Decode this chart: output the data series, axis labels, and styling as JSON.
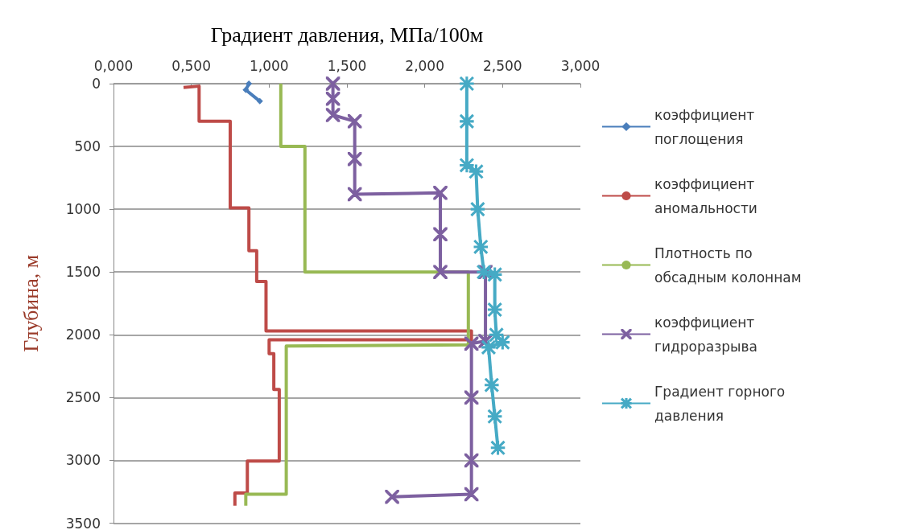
{
  "chart_data": {
    "type": "line",
    "xlabel": "Градиент давления, МПа/100м",
    "ylabel": "Глубина, м",
    "xlim": [
      0,
      3
    ],
    "xticks": [
      {
        "value": 0,
        "label": "0,000"
      },
      {
        "value": 0.5,
        "label": "0,500"
      },
      {
        "value": 1,
        "label": "1,000"
      },
      {
        "value": 1.5,
        "label": "1,500"
      },
      {
        "value": 2,
        "label": "2,000"
      },
      {
        "value": 2.5,
        "label": "2,500"
      },
      {
        "value": 3,
        "label": "3,000"
      }
    ],
    "ylim": [
      3500,
      0
    ],
    "yticks": [
      0,
      500,
      1000,
      1500,
      2000,
      2500,
      3000,
      3500
    ],
    "grid": "y",
    "legend": "right",
    "series": [
      {
        "name": "коэффициент поглощения",
        "color": "#4a7ebb",
        "marker": "diamond",
        "x": [
          0.87,
          0.85,
          0.94
        ],
        "values": [
          0,
          50,
          140
        ]
      },
      {
        "name": "коэффициент аномальности",
        "color": "#be4b48",
        "marker": "none",
        "x": [
          0.45,
          0.55,
          0.55,
          0.75,
          0.75,
          0.87,
          0.87,
          0.92,
          0.92,
          0.98,
          0.98,
          2.3,
          2.3,
          1.0,
          1.0,
          1.03,
          1.03,
          1.065,
          1.065,
          0.86,
          0.86,
          0.78,
          0.78
        ],
        "values": [
          30,
          20,
          300,
          300,
          990,
          990,
          1330,
          1330,
          1575,
          1575,
          1970,
          1970,
          2040,
          2040,
          2150,
          2150,
          2435,
          2435,
          3005,
          3005,
          3260,
          3260,
          3360
        ]
      },
      {
        "name": "Плотность по обсадным колоннам",
        "color": "#98b954",
        "marker": "none",
        "x": [
          1.075,
          1.075,
          1.23,
          1.23,
          2.28,
          2.28,
          1.11,
          1.11,
          0.85,
          0.85
        ],
        "values": [
          0,
          500,
          500,
          1500,
          1500,
          2080,
          2090,
          3270,
          3270,
          3360
        ]
      },
      {
        "name": "коэффициент гидроразрыва",
        "color": "#7d60a0",
        "marker": "cross",
        "x": [
          1.41,
          1.41,
          1.41,
          1.55,
          1.55,
          1.55,
          2.1,
          2.1,
          2.1,
          2.39,
          2.39,
          2.3,
          2.3,
          2.3,
          2.3,
          1.79
        ],
        "values": [
          0,
          120,
          250,
          300,
          600,
          880,
          870,
          1200,
          1500,
          1500,
          2050,
          2070,
          2500,
          3000,
          3270,
          3290
        ]
      },
      {
        "name": "Градиент горного давления",
        "color": "#46aac5",
        "marker": "star",
        "x": [
          2.27,
          2.27,
          2.27,
          2.33,
          2.34,
          2.36,
          2.38,
          2.45,
          2.45,
          2.46,
          2.5,
          2.41,
          2.43,
          2.45,
          2.47
        ],
        "values": [
          0,
          300,
          650,
          700,
          1000,
          1300,
          1500,
          1520,
          1800,
          2000,
          2060,
          2100,
          2400,
          2650,
          2900
        ]
      }
    ]
  }
}
